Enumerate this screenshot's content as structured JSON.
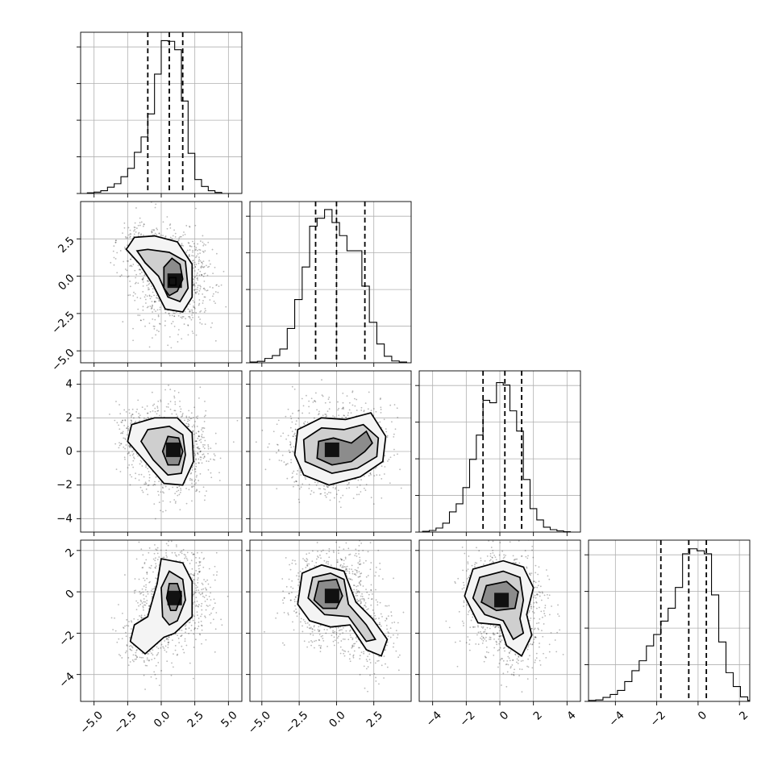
{
  "chart_data": {
    "type": "corner",
    "variables": 4,
    "axis_ranges": [
      [
        -6,
        6
      ],
      [
        -5.8,
        5.0
      ],
      [
        -4.8,
        4.8
      ],
      [
        -5.3,
        2.5
      ]
    ],
    "x_ticks": [
      {
        "values": [
          -5,
          -2.5,
          0,
          2.5,
          5
        ],
        "labels": [
          "−5.0",
          "−2.5",
          "0.0",
          "2.5",
          "5.0"
        ]
      },
      {
        "values": [
          -5,
          -2.5,
          0,
          2.5
        ],
        "labels": [
          "−5.0",
          "−2.5",
          "0.0",
          "2.5"
        ]
      },
      {
        "values": [
          -4,
          -2,
          0,
          2,
          4
        ],
        "labels": [
          "−4",
          "−2",
          "0",
          "2",
          "4"
        ]
      },
      {
        "values": [
          -4,
          -2,
          0,
          2
        ],
        "labels": [
          "−4",
          "−2",
          "0",
          "2"
        ]
      }
    ],
    "y_ticks": [
      null,
      {
        "values": [
          2.5,
          0,
          -2.5,
          -5
        ],
        "labels": [
          "2.5",
          "0.0",
          "−2.5",
          "−5.0"
        ]
      },
      {
        "values": [
          4,
          2,
          0,
          -2,
          -4
        ],
        "labels": [
          "4",
          "2",
          "0",
          "−2",
          "−4"
        ]
      },
      {
        "values": [
          2,
          0,
          -2,
          -4
        ],
        "labels": [
          "2",
          "0",
          "−2",
          "−4"
        ]
      }
    ],
    "marginals": [
      {
        "var": 0,
        "bin_start": -5.5,
        "bin_width": 0.5,
        "counts": [
          2,
          4,
          8,
          18,
          28,
          48,
          72,
          118,
          162,
          228,
          342,
          438,
          436,
          412,
          265,
          115,
          40,
          20,
          8,
          3
        ],
        "quantiles": [
          -1.0,
          0.6,
          1.6
        ],
        "ymax": 440
      },
      {
        "var": 1,
        "bin_start": -5.8,
        "bin_width": 0.5,
        "counts": [
          2,
          4,
          12,
          20,
          38,
          95,
          175,
          265,
          378,
          400,
          424,
          388,
          352,
          310,
          310,
          212,
          112,
          52,
          18,
          5,
          2
        ],
        "quantiles": [
          -1.4,
          0.0,
          1.9
        ],
        "ymax": 425
      },
      {
        "var": 2,
        "bin_start": -4.6,
        "bin_width": 0.4,
        "counts": [
          2,
          4,
          10,
          22,
          50,
          70,
          110,
          180,
          240,
          326,
          320,
          370,
          364,
          300,
          250,
          130,
          58,
          30,
          12,
          6,
          3,
          1
        ],
        "quantiles": [
          -1.0,
          0.3,
          1.3
        ],
        "ymax": 380
      },
      {
        "var": 3,
        "bin_start": -5.3,
        "bin_width": 0.35,
        "counts": [
          2,
          3,
          8,
          14,
          22,
          40,
          62,
          82,
          112,
          135,
          162,
          188,
          230,
          298,
          308,
          304,
          298,
          215,
          120,
          58,
          30,
          9,
          2
        ],
        "quantiles": [
          -1.8,
          -0.45,
          0.4
        ],
        "ymax": 310
      }
    ],
    "joint_densities": [
      {
        "x_var": 0,
        "y_var": 1,
        "core": [
          1.0,
          -0.3
        ],
        "spread": [
          1.3,
          1.5
        ],
        "tail": [
          -1.5,
          1.9
        ],
        "contours": [
          [
            [
              1.6,
              -2.4
            ],
            [
              2.3,
              -1.4
            ],
            [
              2.3,
              0.8
            ],
            [
              1.2,
              2.3
            ],
            [
              -0.5,
              2.7
            ],
            [
              -2.0,
              2.6
            ],
            [
              -2.6,
              1.8
            ],
            [
              -1.6,
              0.8
            ],
            [
              -0.6,
              -0.6
            ],
            [
              0.3,
              -2.2
            ]
          ],
          [
            [
              1.4,
              -1.7
            ],
            [
              2.0,
              -0.8
            ],
            [
              1.8,
              1.0
            ],
            [
              0.6,
              1.6
            ],
            [
              -1.0,
              1.8
            ],
            [
              -1.8,
              1.7
            ],
            [
              -1.2,
              0.9
            ],
            [
              -0.2,
              0.0
            ],
            [
              0.5,
              -1.4
            ]
          ],
          [
            [
              1.2,
              -1.0
            ],
            [
              1.6,
              -0.2
            ],
            [
              1.4,
              0.8
            ],
            [
              0.8,
              1.2
            ],
            [
              0.2,
              0.6
            ],
            [
              0.2,
              -0.8
            ],
            [
              0.6,
              -1.3
            ]
          ],
          [
            [
              0.6,
              -0.6
            ],
            [
              1.1,
              -0.6
            ],
            [
              1.1,
              -0.1
            ],
            [
              0.6,
              -0.1
            ]
          ]
        ]
      },
      {
        "x_var": 0,
        "y_var": 2,
        "core": [
          0.9,
          0.1
        ],
        "spread": [
          1.2,
          1.3
        ],
        "tail": [
          -1.8,
          0.9
        ],
        "contours": [
          [
            [
              1.6,
              -2.0
            ],
            [
              2.4,
              -0.6
            ],
            [
              2.3,
              1.1
            ],
            [
              1.2,
              2.0
            ],
            [
              -0.5,
              2.0
            ],
            [
              -2.2,
              1.6
            ],
            [
              -2.5,
              0.6
            ],
            [
              -1.2,
              -0.6
            ],
            [
              0.2,
              -1.9
            ]
          ],
          [
            [
              1.5,
              -1.3
            ],
            [
              1.8,
              -0.2
            ],
            [
              1.6,
              1.0
            ],
            [
              0.6,
              1.5
            ],
            [
              -1.0,
              1.3
            ],
            [
              -1.5,
              0.6
            ],
            [
              -0.6,
              -0.5
            ],
            [
              0.5,
              -1.4
            ]
          ],
          [
            [
              1.3,
              -0.8
            ],
            [
              1.6,
              0.0
            ],
            [
              1.3,
              0.8
            ],
            [
              0.5,
              0.9
            ],
            [
              0.1,
              0.0
            ],
            [
              0.5,
              -0.8
            ]
          ]
        ]
      },
      {
        "x_var": 1,
        "y_var": 2,
        "core": [
          -0.3,
          0.1
        ],
        "spread": [
          1.6,
          1.2
        ],
        "tail": [
          1.8,
          0.8
        ],
        "contours": [
          [
            [
              -0.5,
              -2.0
            ],
            [
              1.6,
              -1.5
            ],
            [
              3.1,
              -0.6
            ],
            [
              3.3,
              0.9
            ],
            [
              2.3,
              2.3
            ],
            [
              0.6,
              1.9
            ],
            [
              -1.0,
              2.0
            ],
            [
              -2.6,
              1.3
            ],
            [
              -2.8,
              -0.2
            ],
            [
              -2.2,
              -1.4
            ]
          ],
          [
            [
              -0.3,
              -1.3
            ],
            [
              1.4,
              -1.0
            ],
            [
              2.7,
              -0.3
            ],
            [
              2.8,
              0.8
            ],
            [
              1.8,
              1.6
            ],
            [
              0.5,
              1.3
            ],
            [
              -1.0,
              1.4
            ],
            [
              -2.2,
              0.7
            ],
            [
              -2.1,
              -0.6
            ]
          ],
          [
            [
              -0.3,
              -0.8
            ],
            [
              1.0,
              -0.6
            ],
            [
              1.9,
              0.0
            ],
            [
              2.4,
              0.5
            ],
            [
              2.0,
              1.2
            ],
            [
              1.0,
              0.5
            ],
            [
              -0.2,
              0.8
            ],
            [
              -1.2,
              0.6
            ],
            [
              -1.3,
              -0.4
            ]
          ]
        ]
      },
      {
        "x_var": 0,
        "y_var": 3,
        "core": [
          1.0,
          -0.3
        ],
        "spread": [
          1.2,
          1.2
        ],
        "tail": [
          -1.3,
          -2.2
        ],
        "contours": [
          [
            [
              1.0,
              -2.0
            ],
            [
              2.3,
              -1.2
            ],
            [
              2.3,
              0.5
            ],
            [
              1.6,
              1.4
            ],
            [
              0.0,
              1.6
            ],
            [
              -0.3,
              0.4
            ],
            [
              -1.0,
              -1.2
            ],
            [
              -2.0,
              -1.6
            ],
            [
              -2.3,
              -2.4
            ],
            [
              -1.2,
              -3.0
            ],
            [
              0.2,
              -2.2
            ]
          ],
          [
            [
              1.2,
              -1.4
            ],
            [
              1.8,
              -0.4
            ],
            [
              1.6,
              0.6
            ],
            [
              0.6,
              1.0
            ],
            [
              0.0,
              0.2
            ],
            [
              0.1,
              -1.2
            ],
            [
              0.6,
              -1.6
            ]
          ],
          [
            [
              1.1,
              -0.9
            ],
            [
              1.5,
              -0.2
            ],
            [
              1.2,
              0.4
            ],
            [
              0.6,
              0.4
            ],
            [
              0.4,
              -0.3
            ],
            [
              0.7,
              -0.9
            ]
          ]
        ]
      },
      {
        "x_var": 1,
        "y_var": 3,
        "core": [
          -0.3,
          -0.2
        ],
        "spread": [
          1.3,
          1.1
        ],
        "tail": [
          2.2,
          -2.2
        ],
        "contours": [
          [
            [
              -2.6,
              -0.6
            ],
            [
              -2.3,
              0.9
            ],
            [
              -1.0,
              1.3
            ],
            [
              0.5,
              1.0
            ],
            [
              1.3,
              -0.5
            ],
            [
              2.4,
              -1.3
            ],
            [
              3.4,
              -2.3
            ],
            [
              3.0,
              -3.1
            ],
            [
              2.0,
              -2.8
            ],
            [
              0.9,
              -1.6
            ],
            [
              -0.4,
              -1.7
            ],
            [
              -1.8,
              -1.4
            ]
          ],
          [
            [
              -1.9,
              -0.3
            ],
            [
              -1.6,
              0.7
            ],
            [
              -0.4,
              0.9
            ],
            [
              0.5,
              0.6
            ],
            [
              0.8,
              -0.6
            ],
            [
              2.0,
              -1.6
            ],
            [
              2.6,
              -2.3
            ],
            [
              2.0,
              -2.4
            ],
            [
              0.8,
              -1.2
            ],
            [
              -0.8,
              -1.1
            ]
          ],
          [
            [
              -1.5,
              -0.4
            ],
            [
              -1.2,
              0.5
            ],
            [
              0.0,
              0.6
            ],
            [
              0.4,
              -0.2
            ],
            [
              0.0,
              -0.8
            ],
            [
              -0.9,
              -0.8
            ]
          ]
        ]
      },
      {
        "x_var": 2,
        "y_var": 3,
        "core": [
          0.1,
          -0.4
        ],
        "spread": [
          1.1,
          1.1
        ],
        "tail": [
          1.2,
          -2.3
        ],
        "contours": [
          [
            [
              -2.1,
              -0.2
            ],
            [
              -1.6,
              1.1
            ],
            [
              0.2,
              1.5
            ],
            [
              1.4,
              1.2
            ],
            [
              2.0,
              0.2
            ],
            [
              1.6,
              -1.1
            ],
            [
              1.9,
              -2.1
            ],
            [
              1.3,
              -3.1
            ],
            [
              0.4,
              -2.6
            ],
            [
              0.0,
              -1.6
            ],
            [
              -1.3,
              -1.5
            ]
          ],
          [
            [
              -1.6,
              -0.3
            ],
            [
              -1.2,
              0.7
            ],
            [
              0.2,
              1.0
            ],
            [
              1.2,
              0.7
            ],
            [
              1.4,
              -0.4
            ],
            [
              1.2,
              -1.3
            ],
            [
              1.4,
              -2.0
            ],
            [
              0.8,
              -2.3
            ],
            [
              0.2,
              -1.4
            ],
            [
              -0.9,
              -1.1
            ]
          ],
          [
            [
              -1.1,
              -0.5
            ],
            [
              -0.8,
              0.3
            ],
            [
              0.4,
              0.5
            ],
            [
              1.1,
              0.0
            ],
            [
              0.9,
              -0.8
            ],
            [
              -0.2,
              -0.9
            ]
          ]
        ]
      }
    ],
    "grid": true
  }
}
